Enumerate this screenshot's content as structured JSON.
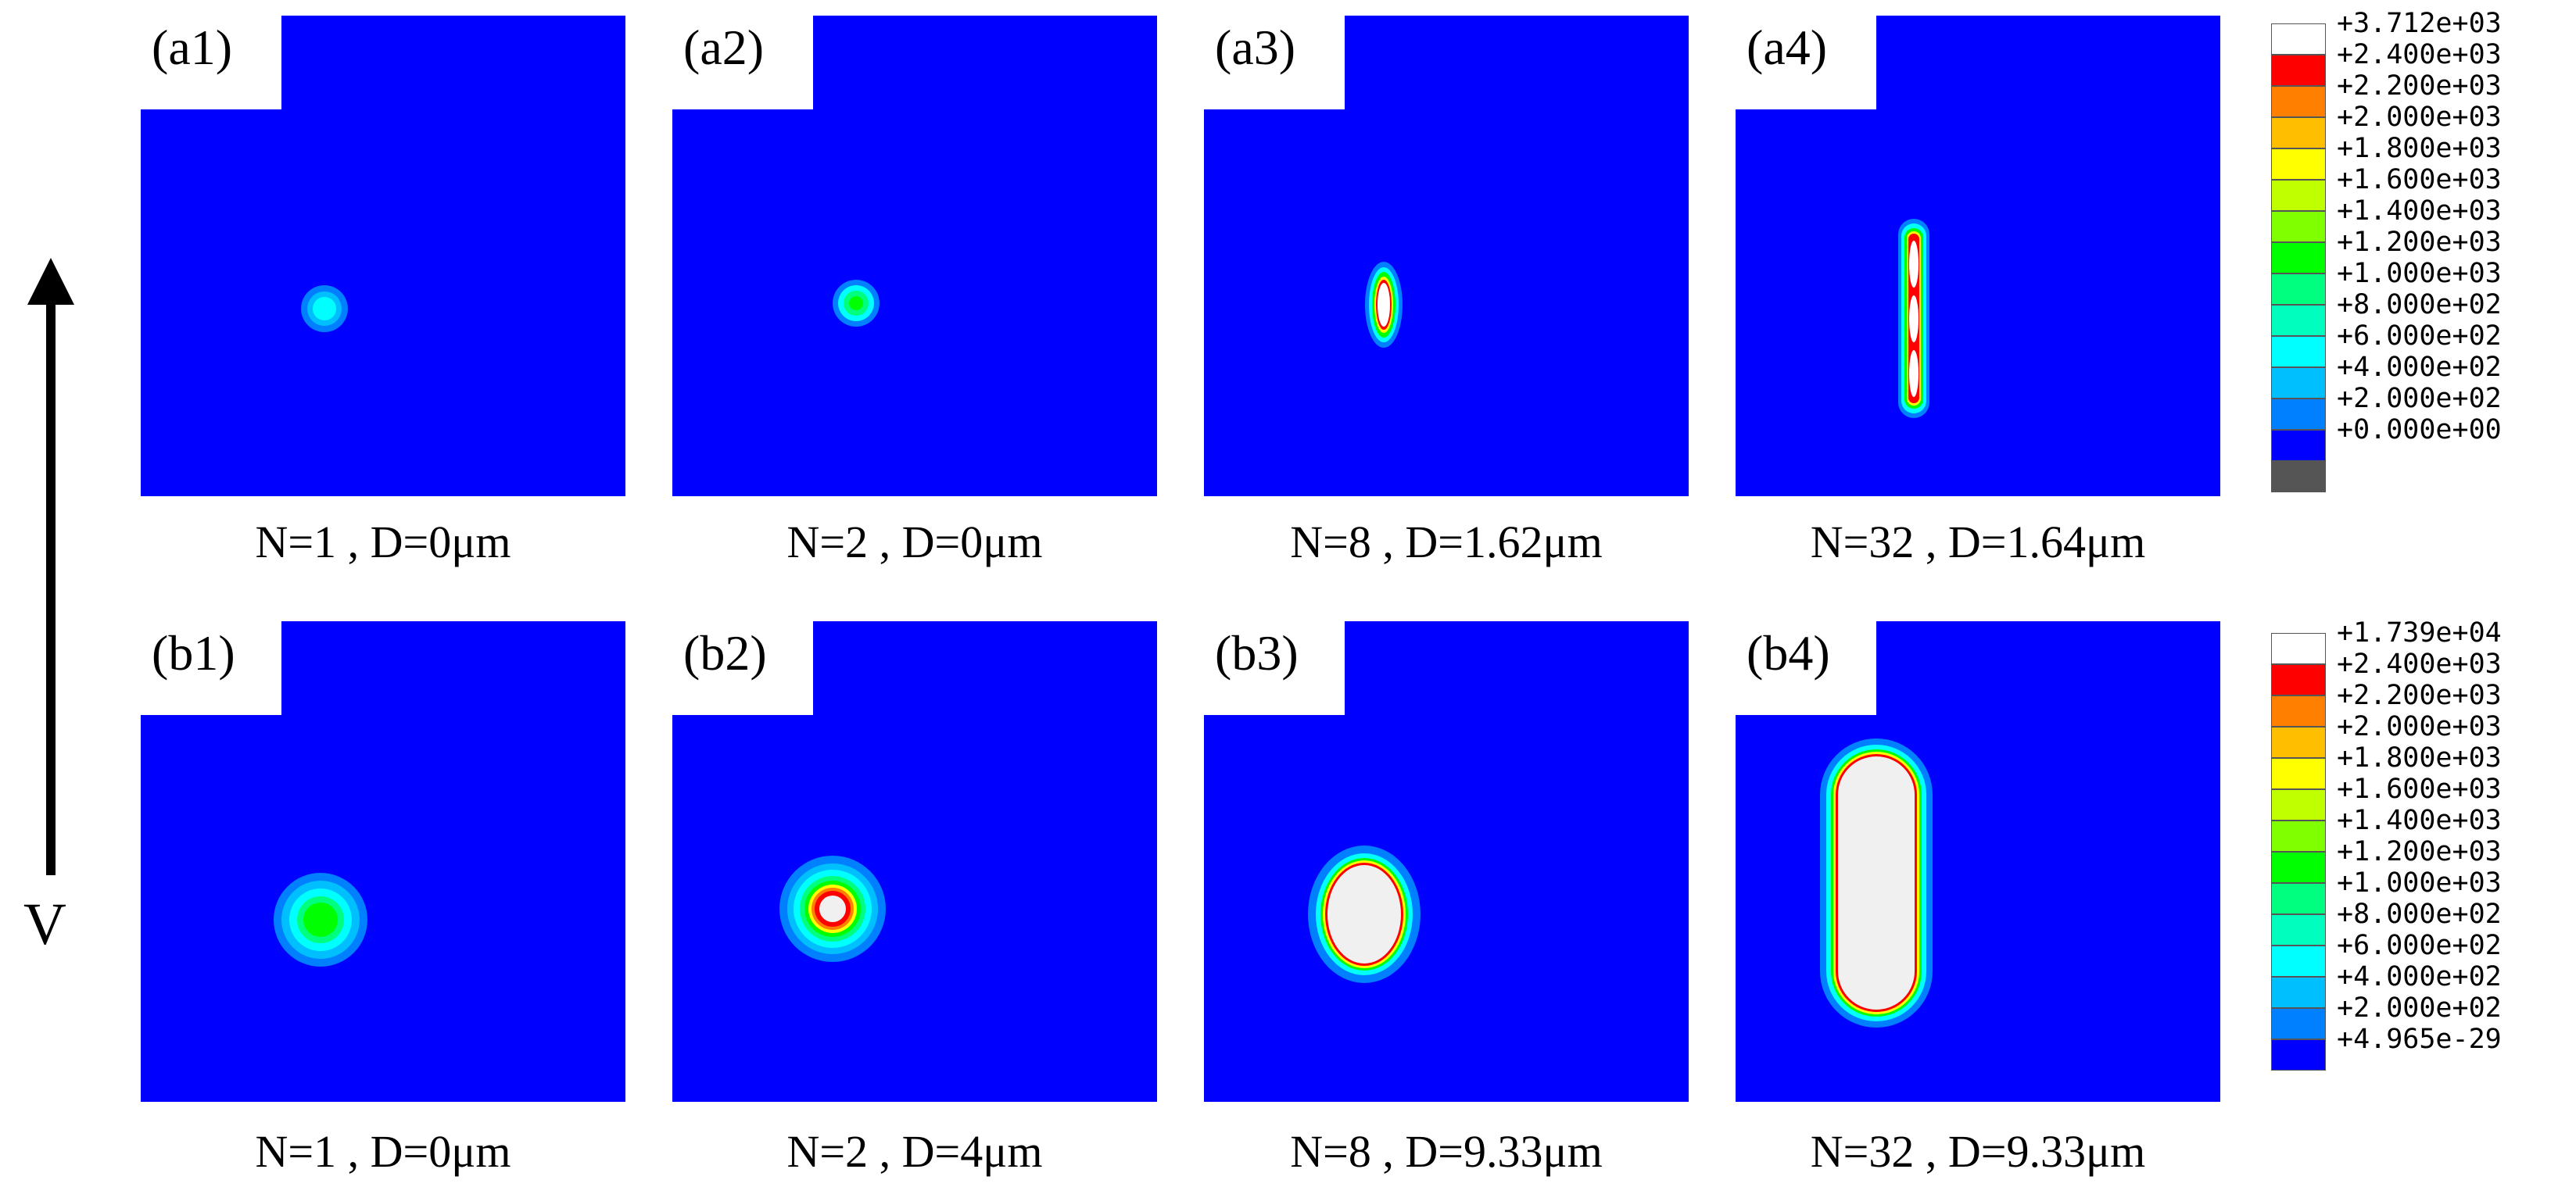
{
  "colors": {
    "background_blue": "#0000ff",
    "levels": [
      "#ffffff",
      "#ff0000",
      "#ff7f00",
      "#ffbf00",
      "#ffff00",
      "#bfff00",
      "#7fff00",
      "#00ff00",
      "#00ff7f",
      "#00ffbf",
      "#00ffff",
      "#00bfff",
      "#007fff",
      "#0000ff",
      "#555555"
    ],
    "inner_saturated_b": "#f0f0f0"
  },
  "arrow": {
    "label": "V"
  },
  "rows": [
    {
      "panels": [
        {
          "label": "(a1)",
          "caption": "N=1 , D=0μm",
          "N": 1,
          "D_um": 0
        },
        {
          "label": "(a2)",
          "caption": "N=2 , D=0μm",
          "N": 2,
          "D_um": 0
        },
        {
          "label": "(a3)",
          "caption": "N=8 , D=1.62μm",
          "N": 8,
          "D_um": 1.62
        },
        {
          "label": "(a4)",
          "caption": "N=32 , D=1.64μm",
          "N": 32,
          "D_um": 1.64
        }
      ],
      "legend": {
        "entries": [
          "+3.712e+03",
          "+2.400e+03",
          "+2.200e+03",
          "+2.000e+03",
          "+1.800e+03",
          "+1.600e+03",
          "+1.400e+03",
          "+1.200e+03",
          "+1.000e+03",
          "+8.000e+02",
          "+6.000e+02",
          "+4.000e+02",
          "+2.000e+02",
          "+0.000e+00"
        ],
        "swatches": [
          "#ffffff",
          "#ff0000",
          "#ff7f00",
          "#ffbf00",
          "#ffff00",
          "#bfff00",
          "#7fff00",
          "#00ff00",
          "#00ff7f",
          "#00ffbf",
          "#00ffff",
          "#00bfff",
          "#007fff",
          "#0000ff",
          "#555555"
        ]
      }
    },
    {
      "panels": [
        {
          "label": "(b1)",
          "caption": "N=1 , D=0μm",
          "N": 1,
          "D_um": 0
        },
        {
          "label": "(b2)",
          "caption": "N=2 , D=4μm",
          "N": 2,
          "D_um": 4
        },
        {
          "label": "(b3)",
          "caption": "N=8 , D=9.33μm",
          "N": 8,
          "D_um": 9.33
        },
        {
          "label": "(b4)",
          "caption": "N=32 , D=9.33μm",
          "N": 32,
          "D_um": 9.33
        }
      ],
      "legend": {
        "entries": [
          "+1.739e+04",
          "+2.400e+03",
          "+2.200e+03",
          "+2.000e+03",
          "+1.800e+03",
          "+1.600e+03",
          "+1.400e+03",
          "+1.200e+03",
          "+1.000e+03",
          "+8.000e+02",
          "+6.000e+02",
          "+4.000e+02",
          "+2.000e+02",
          "+4.965e-29"
        ],
        "swatches": [
          "#ffffff",
          "#ff0000",
          "#ff7f00",
          "#ffbf00",
          "#ffff00",
          "#bfff00",
          "#7fff00",
          "#00ff00",
          "#00ff7f",
          "#00ffbf",
          "#00ffff",
          "#00bfff",
          "#007fff",
          "#0000ff"
        ]
      }
    }
  ]
}
